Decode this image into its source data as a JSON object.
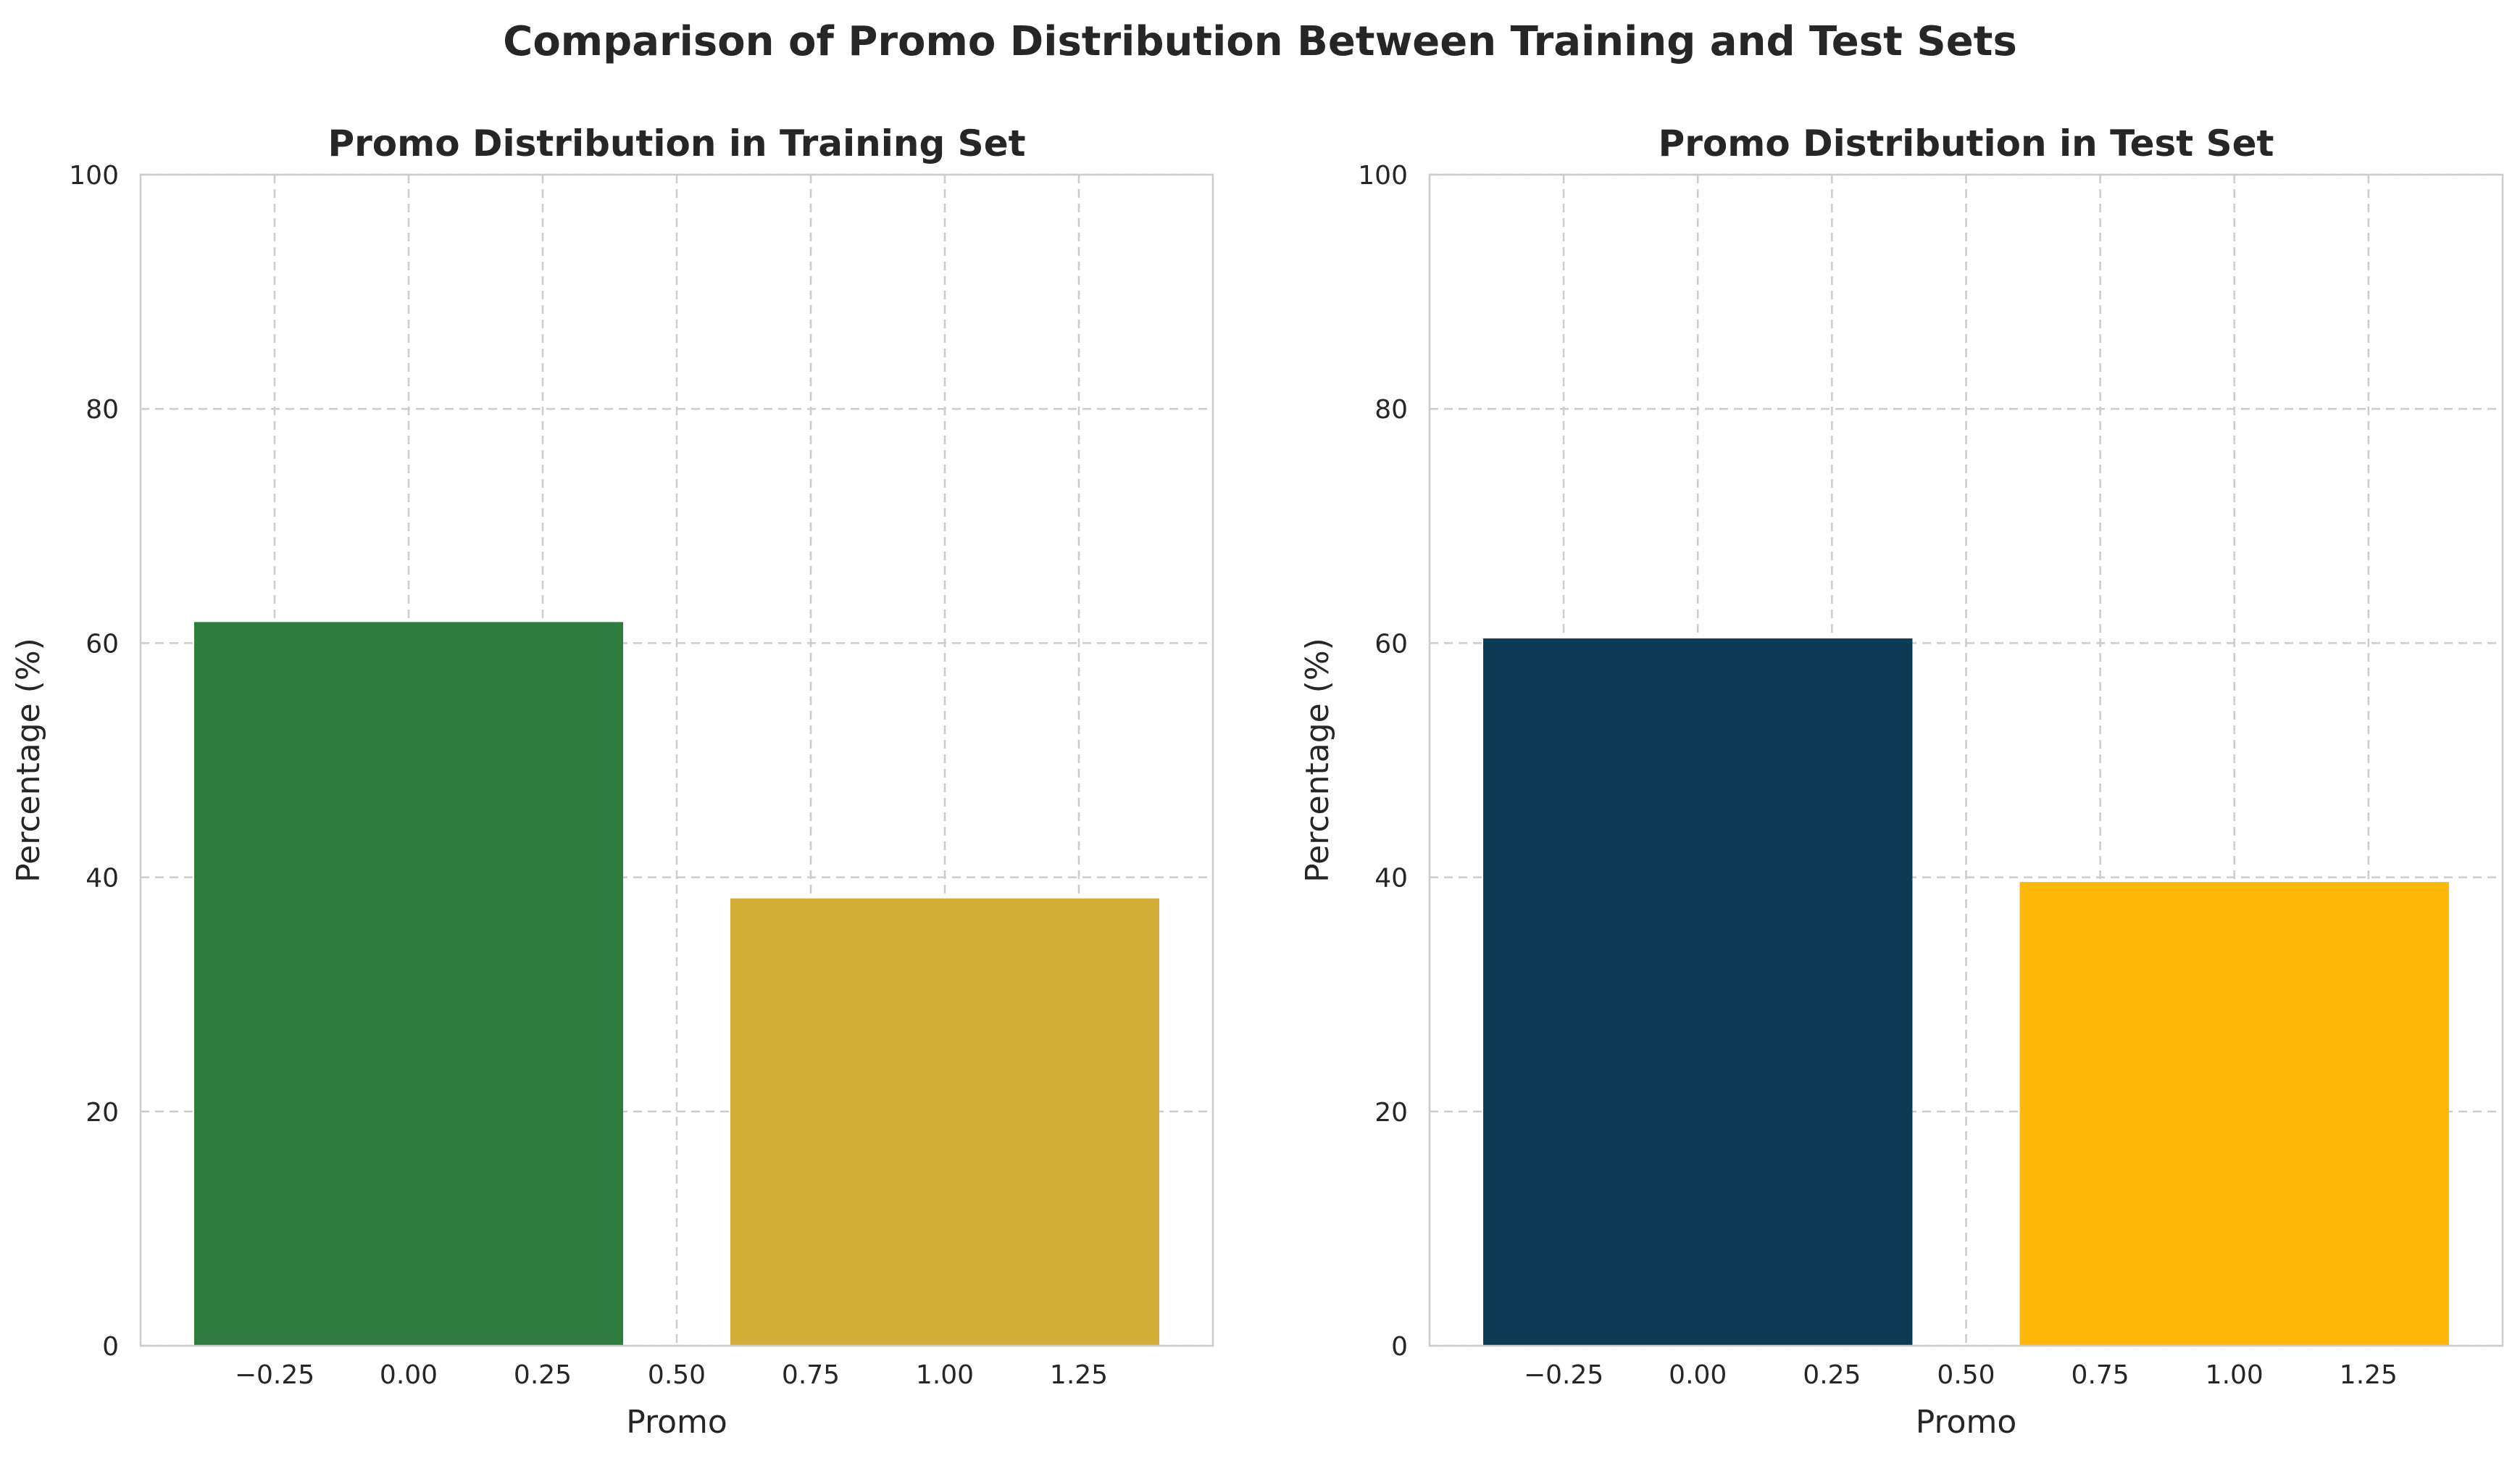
{
  "suptitle": "Comparison of Promo Distribution Between Training and Test Sets",
  "chart_data": [
    {
      "type": "bar",
      "title": "Promo Distribution in Training Set",
      "xlabel": "Promo",
      "ylabel": "Percentage (%)",
      "categories": [
        "0",
        "1"
      ],
      "x": [
        0,
        1
      ],
      "values": [
        61.8,
        38.2
      ],
      "colors": [
        "#2e7d3e",
        "#d4af37"
      ],
      "xlim": [
        -0.5,
        1.5
      ],
      "ylim": [
        0,
        100
      ],
      "xticks": [
        "−0.25",
        "0.00",
        "0.25",
        "0.50",
        "0.75",
        "1.00",
        "1.25"
      ],
      "yticks": [
        "0",
        "20",
        "40",
        "60",
        "80",
        "100"
      ],
      "grid": true
    },
    {
      "type": "bar",
      "title": "Promo Distribution in Test Set",
      "xlabel": "Promo",
      "ylabel": "Percentage (%)",
      "categories": [
        "0",
        "1"
      ],
      "x": [
        0,
        1
      ],
      "values": [
        60.4,
        39.6
      ],
      "colors": [
        "#0d3a54",
        "#ffb80a"
      ],
      "xlim": [
        -0.5,
        1.5
      ],
      "ylim": [
        0,
        100
      ],
      "xticks": [
        "−0.25",
        "0.00",
        "0.25",
        "0.50",
        "0.75",
        "1.00",
        "1.25"
      ],
      "yticks": [
        "0",
        "20",
        "40",
        "60",
        "80",
        "100"
      ],
      "grid": true
    }
  ]
}
